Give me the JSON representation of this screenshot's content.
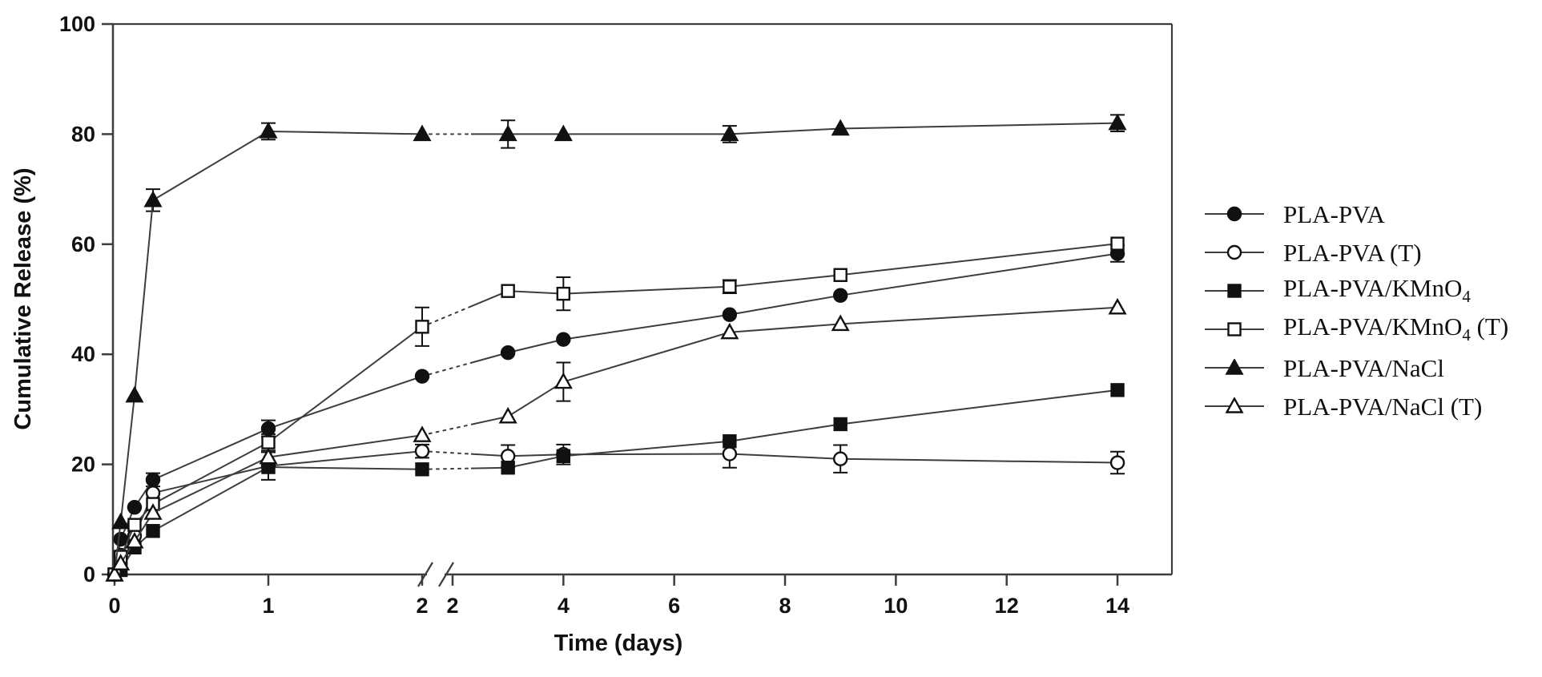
{
  "figure": {
    "background": "#ffffff",
    "line_color": "#3d3d3d",
    "marker_color": "#111111",
    "y_axis": {
      "label": "Cumulative Release (%)",
      "ticks": [
        0,
        20,
        40,
        60,
        80,
        100
      ],
      "range": [
        0,
        100
      ]
    },
    "x_axis": {
      "label": "Time (days)",
      "left_ticks": [
        0,
        1,
        2
      ],
      "right_ticks": [
        2,
        4,
        6,
        8,
        10,
        12,
        14
      ],
      "has_break": true,
      "break_label_pair": "2 2"
    }
  },
  "legend": {
    "items": [
      {
        "id": "pla-pva",
        "marker": "circle",
        "variant": "filled",
        "parts": [
          "PLA-PVA"
        ]
      },
      {
        "id": "pla-pva-t",
        "marker": "circle",
        "variant": "open",
        "parts": [
          "PLA-PVA (T)"
        ]
      },
      {
        "id": "pla-pva-kmno4",
        "marker": "square",
        "variant": "filled",
        "parts": [
          "PLA-PVA/KMnO",
          {
            "sub": "4"
          }
        ]
      },
      {
        "id": "pla-pva-kmno4-t",
        "marker": "square",
        "variant": "open",
        "parts": [
          "PLA-PVA/KMnO",
          {
            "sub": "4"
          },
          " (T)"
        ]
      },
      {
        "id": "pla-pva-nacl",
        "marker": "triangle",
        "variant": "filled",
        "parts": [
          "PLA-PVA/NaCl"
        ]
      },
      {
        "id": "pla-pva-nacl-t",
        "marker": "triangle",
        "variant": "open",
        "parts": [
          "PLA-PVA/NaCl (T)"
        ]
      }
    ]
  },
  "chart_data": {
    "type": "line",
    "title": "",
    "xlabel": "Time (days)",
    "ylabel": "Cumulative Release (%)",
    "ylim": [
      0,
      100
    ],
    "grid": false,
    "legend_position": "right-outside",
    "x_break": {
      "left_range": [
        0,
        2
      ],
      "right_range": [
        2,
        14
      ],
      "note": "axis break after day 2; dotted line segments bridge the break"
    },
    "x": [
      0,
      0.04,
      0.13,
      0.25,
      1,
      2,
      3,
      4,
      7,
      9,
      14
    ],
    "series": [
      {
        "id": "pla-pva",
        "name": "PLA-PVA",
        "marker": "circle",
        "variant": "filled",
        "y": [
          0,
          6.4,
          12.2,
          17.2,
          26.5,
          36.0,
          40.3,
          42.7,
          47.2,
          50.7,
          58.3
        ],
        "err": [
          0,
          0,
          0,
          1.2,
          1.5,
          0,
          0,
          0,
          0,
          0,
          1.5
        ]
      },
      {
        "id": "pla-pva-t",
        "name": "PLA-PVA (T)",
        "marker": "circle",
        "variant": "open",
        "y": [
          0,
          3.5,
          7.0,
          14.8,
          19.7,
          22.4,
          21.5,
          21.8,
          21.9,
          21.0,
          20.3
        ],
        "err": [
          0,
          0,
          0,
          0,
          2.5,
          1.2,
          2.0,
          1.8,
          2.5,
          2.5,
          2.0
        ]
      },
      {
        "id": "pla-pva-kmno4",
        "name": "PLA-PVA/KMnO4",
        "marker": "square",
        "variant": "filled",
        "y": [
          0,
          0.8,
          4.9,
          7.9,
          19.5,
          19.1,
          19.4,
          21.5,
          24.2,
          27.3,
          33.5
        ],
        "err": [
          0,
          0,
          0,
          0,
          0,
          0,
          0,
          0,
          0,
          0,
          0
        ]
      },
      {
        "id": "pla-pva-kmno4-t",
        "name": "PLA-PVA/KMnO4 (T)",
        "marker": "square",
        "variant": "open",
        "y": [
          0,
          3.2,
          9.0,
          12.8,
          24.0,
          45.0,
          51.5,
          51.0,
          52.3,
          54.4,
          60.1
        ],
        "err": [
          0,
          0,
          0,
          0,
          1.5,
          3.5,
          0,
          3.0,
          1.2,
          0,
          0
        ]
      },
      {
        "id": "pla-pva-nacl",
        "name": "PLA-PVA/NaCl",
        "marker": "triangle",
        "variant": "filled",
        "y": [
          0,
          9.5,
          32.5,
          68.0,
          80.5,
          80.0,
          80.0,
          80.0,
          80.0,
          81.0,
          82.0
        ],
        "err": [
          0,
          0,
          0,
          2.0,
          1.5,
          0,
          2.5,
          0,
          1.5,
          0,
          1.5
        ]
      },
      {
        "id": "pla-pva-nacl-t",
        "name": "PLA-PVA/NaCl (T)",
        "marker": "triangle",
        "variant": "open",
        "y": [
          0,
          2.0,
          6.0,
          11.2,
          21.3,
          25.3,
          28.7,
          35.0,
          44.0,
          45.5,
          48.5
        ],
        "err": [
          0,
          0,
          0,
          0,
          0,
          0,
          0,
          3.5,
          0,
          0,
          0
        ]
      }
    ]
  }
}
